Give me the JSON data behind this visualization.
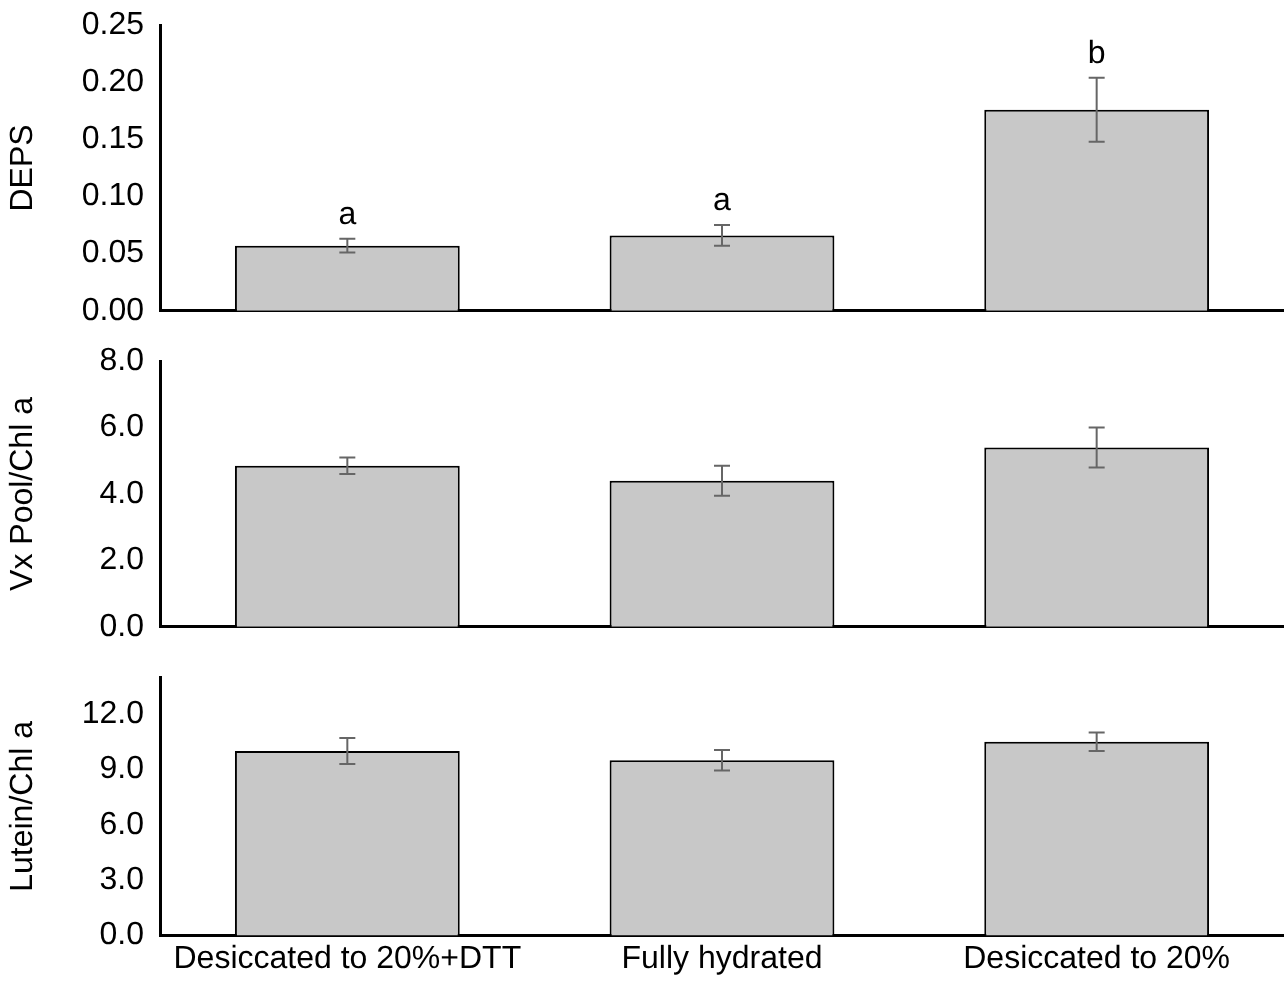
{
  "chart_data": [
    {
      "type": "bar",
      "ylabel": "DEPS",
      "categories": [
        "Desiccated to 20%+DTT",
        "Fully hydrated",
        "Desiccated to 20%"
      ],
      "values": [
        0.057,
        0.066,
        0.176
      ],
      "errors": [
        0.006,
        0.009,
        0.028
      ],
      "color": "#c8c8c8",
      "ylim": [
        0,
        0.25
      ],
      "yticks": [
        {
          "value": 0,
          "label": "0.00"
        },
        {
          "value": 0.05,
          "label": "0.05"
        },
        {
          "value": 0.1,
          "label": "0.10"
        },
        {
          "value": 0.15,
          "label": "0.15"
        },
        {
          "value": 0.2,
          "label": "0.20"
        },
        {
          "value": 0.25,
          "label": "0.25"
        }
      ],
      "annotations": [
        {
          "text": "a",
          "x": "Desiccated to 20%+DTT",
          "y": 0.063
        },
        {
          "text": "a",
          "x": "Fully hydrated",
          "y": 0.075
        },
        {
          "text": "b",
          "x": "Desiccated to 20%",
          "y": 0.204
        }
      ],
      "tick_labels": "y",
      "grid": false,
      "legend": false
    },
    {
      "type": "bar",
      "ylabel": "Vx Pool/Chl a",
      "categories": [
        "Desiccated to 20%+DTT",
        "Fully hydrated",
        "Desiccated to 20%"
      ],
      "values": [
        4.85,
        4.4,
        5.4
      ],
      "errors": [
        0.25,
        0.45,
        0.6
      ],
      "color": "#c8c8c8",
      "ylim": [
        0,
        8
      ],
      "yticks": [
        {
          "value": 0,
          "label": "0.0"
        },
        {
          "value": 2,
          "label": "2.0"
        },
        {
          "value": 4,
          "label": "4.0"
        },
        {
          "value": 6,
          "label": "6.0"
        },
        {
          "value": 8,
          "label": "8.0"
        }
      ],
      "tick_labels": "y",
      "grid": false,
      "legend": false
    },
    {
      "type": "bar",
      "ylabel": "Lutein/Chl a",
      "categories": [
        "Desiccated to 20%+DTT",
        "Fully hydrated",
        "Desiccated to 20%"
      ],
      "values": [
        10.0,
        9.5,
        10.5
      ],
      "errors": [
        0.7,
        0.55,
        0.5
      ],
      "color": "#c8c8c8",
      "ylim": [
        0,
        14
      ],
      "yticks": [
        {
          "value": 0,
          "label": "0.0"
        },
        {
          "value": 3,
          "label": "3.0"
        },
        {
          "value": 6,
          "label": "6.0"
        },
        {
          "value": 9,
          "label": "9.0"
        },
        {
          "value": 12,
          "label": "12.0"
        }
      ],
      "grid": false,
      "legend": false
    }
  ]
}
